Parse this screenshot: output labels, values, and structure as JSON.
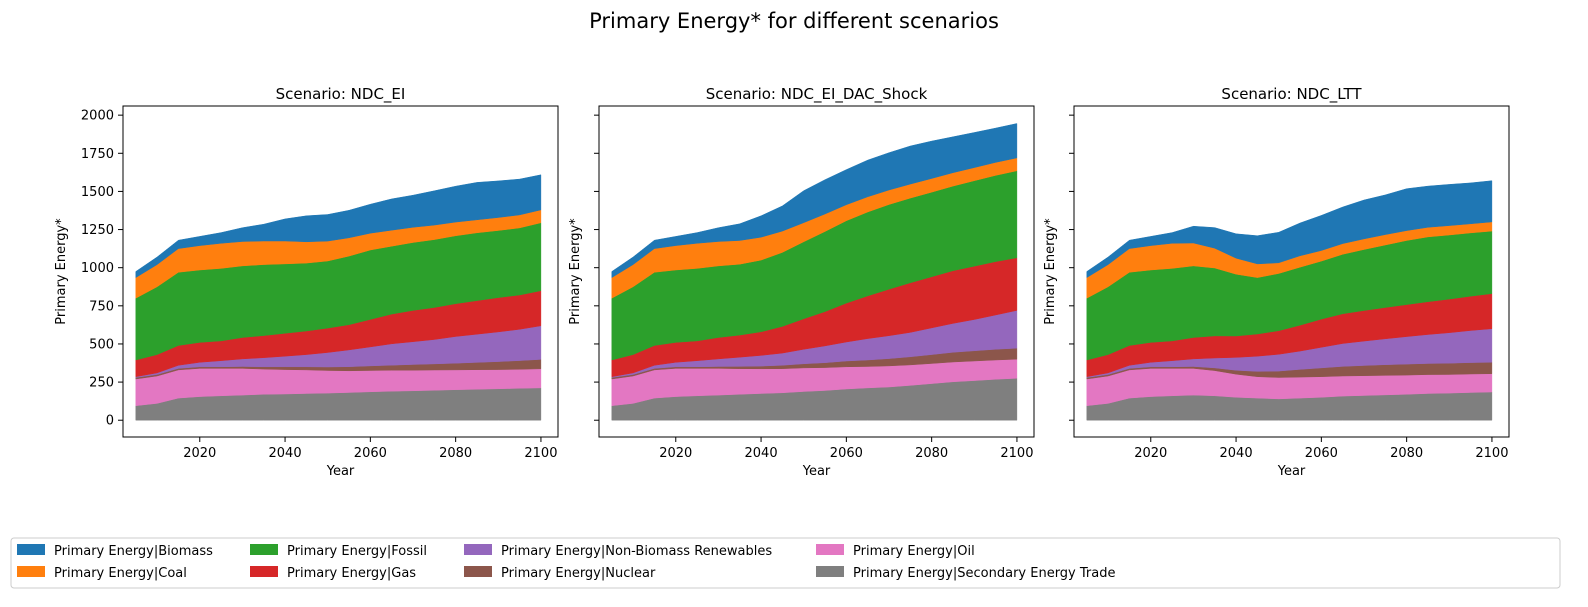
{
  "figure": {
    "suptitle": "Primary Energy* for different scenarios"
  },
  "colors": {
    "Primary Energy|Biomass": "#1f77b4",
    "Primary Energy|Coal": "#ff7f0e",
    "Primary Energy|Fossil": "#2ca02c",
    "Primary Energy|Gas": "#d62728",
    "Primary Energy|Non-Biomass Renewables": "#9467bd",
    "Primary Energy|Nuclear": "#8c564b",
    "Primary Energy|Oil": "#e377c2",
    "Primary Energy|Secondary Energy Trade": "#7f7f7f"
  },
  "legend": {
    "placement": "bottom",
    "columns": 6,
    "entries": [
      "Primary Energy|Biomass",
      "Primary Energy|Coal",
      "Primary Energy|Fossil",
      "Primary Energy|Gas",
      "Primary Energy|Non-Biomass Renewables",
      "Primary Energy|Nuclear",
      "Primary Energy|Oil",
      "Primary Energy|Secondary Energy Trade"
    ]
  },
  "chart_data": [
    {
      "type": "area",
      "title": "Scenario: NDC_EI",
      "xlabel": "Year",
      "ylabel": "Primary Energy*",
      "xlim": [
        2002,
        2104
      ],
      "ylim": [
        -110,
        2060
      ],
      "xticks": [
        2020,
        2040,
        2060,
        2080,
        2100
      ],
      "yticks": [
        0,
        250,
        500,
        750,
        1000,
        1250,
        1500,
        1750,
        2000
      ],
      "show_ytick_labels": true,
      "x": [
        2005,
        2010,
        2015,
        2020,
        2025,
        2030,
        2035,
        2040,
        2045,
        2050,
        2055,
        2060,
        2065,
        2070,
        2075,
        2080,
        2085,
        2090,
        2095,
        2100
      ],
      "series": [
        {
          "name": "Primary Energy|Secondary Energy Trade",
          "values": [
            95,
            110,
            145,
            155,
            160,
            165,
            170,
            172,
            175,
            178,
            182,
            186,
            190,
            193,
            196,
            200,
            203,
            206,
            209,
            212
          ]
        },
        {
          "name": "Primary Energy|Oil",
          "values": [
            175,
            180,
            185,
            185,
            180,
            175,
            165,
            160,
            155,
            148,
            142,
            140,
            138,
            135,
            133,
            130,
            128,
            126,
            125,
            125
          ]
        },
        {
          "name": "Primary Energy|Nuclear",
          "values": [
            10,
            10,
            10,
            10,
            10,
            12,
            15,
            18,
            20,
            23,
            27,
            30,
            33,
            37,
            40,
            44,
            48,
            52,
            57,
            62
          ]
        },
        {
          "name": "Primary Energy|Non-Biomass Renewables",
          "values": [
            5,
            10,
            20,
            30,
            40,
            50,
            60,
            70,
            80,
            95,
            110,
            125,
            140,
            150,
            160,
            175,
            185,
            195,
            205,
            220
          ]
        },
        {
          "name": "Primary Energy|Gas",
          "values": [
            110,
            120,
            130,
            130,
            130,
            140,
            145,
            150,
            155,
            160,
            165,
            180,
            195,
            205,
            210,
            215,
            220,
            225,
            225,
            230
          ]
        },
        {
          "name": "Primary Energy|Fossil",
          "values": [
            405,
            445,
            480,
            475,
            475,
            470,
            465,
            455,
            445,
            440,
            450,
            455,
            445,
            445,
            445,
            445,
            445,
            440,
            440,
            445
          ]
        },
        {
          "name": "Primary Energy|Coal",
          "values": [
            135,
            145,
            155,
            160,
            165,
            160,
            155,
            150,
            140,
            130,
            120,
            110,
            105,
            100,
            95,
            90,
            85,
            85,
            85,
            85
          ]
        },
        {
          "name": "Primary Energy|Biomass",
          "values": [
            40,
            50,
            55,
            60,
            70,
            90,
            110,
            145,
            170,
            175,
            180,
            190,
            205,
            210,
            225,
            235,
            245,
            240,
            235,
            230
          ]
        }
      ]
    },
    {
      "type": "area",
      "title": "Scenario: NDC_EI_DAC_Shock",
      "xlabel": "Year",
      "ylabel": "Primary Energy*",
      "xlim": [
        2002,
        2104
      ],
      "ylim": [
        -110,
        2060
      ],
      "xticks": [
        2020,
        2040,
        2060,
        2080,
        2100
      ],
      "yticks": [
        0,
        250,
        500,
        750,
        1000,
        1250,
        1500,
        1750,
        2000
      ],
      "show_ytick_labels": false,
      "x": [
        2005,
        2010,
        2015,
        2020,
        2025,
        2030,
        2035,
        2040,
        2045,
        2050,
        2055,
        2060,
        2065,
        2070,
        2075,
        2080,
        2085,
        2090,
        2095,
        2100
      ],
      "series": [
        {
          "name": "Primary Energy|Secondary Energy Trade",
          "values": [
            95,
            110,
            145,
            155,
            160,
            165,
            170,
            175,
            180,
            188,
            195,
            205,
            212,
            218,
            228,
            240,
            252,
            260,
            268,
            275
          ]
        },
        {
          "name": "Primary Energy|Oil",
          "values": [
            175,
            180,
            185,
            185,
            180,
            175,
            168,
            162,
            158,
            155,
            150,
            145,
            140,
            138,
            135,
            132,
            130,
            128,
            127,
            125
          ]
        },
        {
          "name": "Primary Energy|Nuclear",
          "values": [
            10,
            10,
            10,
            10,
            10,
            12,
            15,
            18,
            22,
            27,
            32,
            38,
            43,
            48,
            53,
            58,
            63,
            67,
            70,
            72
          ]
        },
        {
          "name": "Primary Energy|Non-Biomass Renewables",
          "values": [
            5,
            10,
            20,
            30,
            40,
            50,
            60,
            70,
            80,
            95,
            110,
            125,
            140,
            150,
            160,
            175,
            190,
            205,
            225,
            248
          ]
        },
        {
          "name": "Primary Energy|Gas",
          "values": [
            110,
            120,
            130,
            130,
            130,
            140,
            145,
            155,
            175,
            200,
            225,
            255,
            280,
            305,
            325,
            335,
            345,
            350,
            350,
            345
          ]
        },
        {
          "name": "Primary Energy|Fossil",
          "values": [
            405,
            445,
            480,
            475,
            475,
            470,
            465,
            470,
            485,
            505,
            525,
            540,
            550,
            555,
            555,
            555,
            555,
            560,
            565,
            570
          ]
        },
        {
          "name": "Primary Energy|Coal",
          "values": [
            135,
            145,
            155,
            160,
            165,
            160,
            155,
            150,
            140,
            125,
            115,
            105,
            100,
            95,
            92,
            90,
            88,
            86,
            85,
            85
          ]
        },
        {
          "name": "Primary Energy|Biomass",
          "values": [
            40,
            50,
            55,
            60,
            70,
            90,
            110,
            140,
            165,
            210,
            225,
            230,
            240,
            245,
            250,
            245,
            235,
            230,
            225,
            225
          ]
        }
      ]
    },
    {
      "type": "area",
      "title": "Scenario: NDC_LTT",
      "xlabel": "Year",
      "ylabel": "Primary Energy*",
      "xlim": [
        2002,
        2104
      ],
      "ylim": [
        -110,
        2060
      ],
      "xticks": [
        2020,
        2040,
        2060,
        2080,
        2100
      ],
      "yticks": [
        0,
        250,
        500,
        750,
        1000,
        1250,
        1500,
        1750,
        2000
      ],
      "show_ytick_labels": false,
      "x": [
        2005,
        2010,
        2015,
        2020,
        2025,
        2030,
        2035,
        2040,
        2045,
        2050,
        2055,
        2060,
        2065,
        2070,
        2075,
        2080,
        2085,
        2090,
        2095,
        2100
      ],
      "series": [
        {
          "name": "Primary Energy|Secondary Energy Trade",
          "values": [
            95,
            110,
            145,
            155,
            160,
            165,
            160,
            150,
            145,
            140,
            145,
            150,
            158,
            162,
            166,
            170,
            175,
            178,
            182,
            185
          ]
        },
        {
          "name": "Primary Energy|Oil",
          "values": [
            175,
            180,
            185,
            185,
            180,
            175,
            165,
            152,
            140,
            140,
            138,
            135,
            132,
            130,
            128,
            126,
            124,
            122,
            121,
            120
          ]
        },
        {
          "name": "Primary Energy|Nuclear",
          "values": [
            10,
            10,
            10,
            10,
            10,
            12,
            18,
            25,
            35,
            42,
            50,
            58,
            63,
            67,
            70,
            72,
            73,
            74,
            75,
            75
          ]
        },
        {
          "name": "Primary Energy|Non-Biomass Renewables",
          "values": [
            5,
            10,
            20,
            30,
            40,
            50,
            65,
            85,
            100,
            110,
            120,
            135,
            150,
            160,
            170,
            180,
            190,
            200,
            210,
            220
          ]
        },
        {
          "name": "Primary Energy|Gas",
          "values": [
            110,
            120,
            130,
            130,
            130,
            140,
            145,
            140,
            145,
            155,
            170,
            185,
            195,
            200,
            205,
            210,
            215,
            220,
            225,
            230
          ]
        },
        {
          "name": "Primary Energy|Fossil",
          "values": [
            405,
            445,
            480,
            475,
            475,
            470,
            445,
            405,
            370,
            375,
            380,
            380,
            390,
            400,
            410,
            420,
            425,
            420,
            415,
            410
          ]
        },
        {
          "name": "Primary Energy|Coal",
          "values": [
            135,
            145,
            155,
            160,
            165,
            150,
            130,
            105,
            90,
            70,
            75,
            70,
            70,
            70,
            68,
            65,
            63,
            62,
            60,
            60
          ]
        },
        {
          "name": "Primary Energy|Biomass",
          "values": [
            40,
            50,
            55,
            60,
            70,
            110,
            135,
            160,
            185,
            200,
            215,
            230,
            240,
            255,
            260,
            275,
            270,
            270,
            268,
            270
          ]
        }
      ]
    }
  ]
}
